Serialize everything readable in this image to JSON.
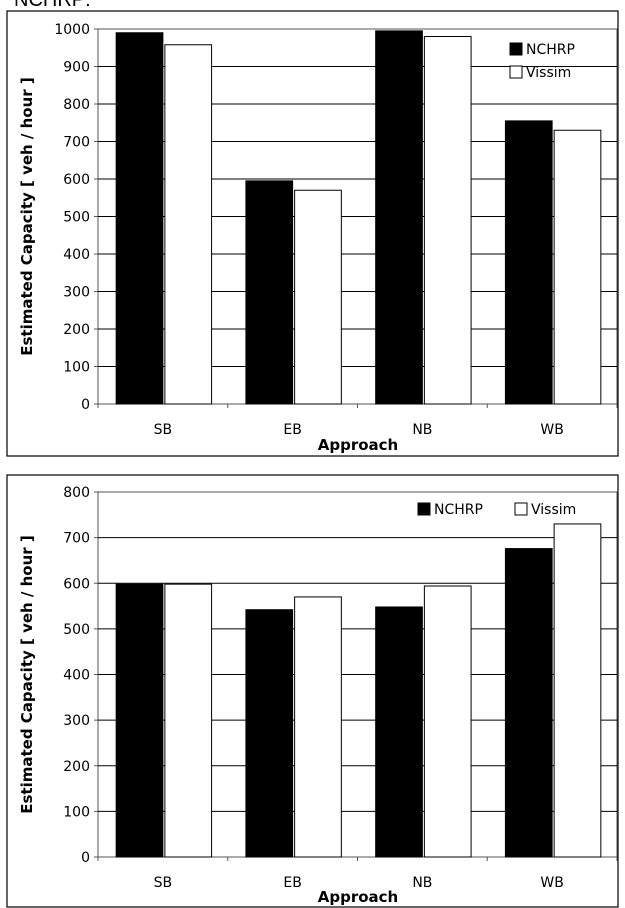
{
  "caption": "NCHRP:",
  "chart_data": [
    {
      "type": "bar",
      "categories": [
        "SB",
        "EB",
        "NB",
        "WB"
      ],
      "series": [
        {
          "name": "NCHRP",
          "values": [
            990,
            595,
            995,
            755
          ],
          "color": "#000000"
        },
        {
          "name": "Vissim",
          "values": [
            958,
            570,
            980,
            730
          ],
          "color": "#ffffff"
        }
      ],
      "xlabel": "Approach",
      "ylabel": "Estimated Capacity [ veh / hour ]",
      "ylim": [
        0,
        1000
      ],
      "yticks": [
        "0",
        "100",
        "200",
        "300",
        "400",
        "500",
        "600",
        "700",
        "800",
        "900",
        "1000"
      ],
      "grid": true,
      "legend": "top-right, stacked"
    },
    {
      "type": "bar",
      "categories": [
        "SB",
        "EB",
        "NB",
        "WB"
      ],
      "series": [
        {
          "name": "NCHRP",
          "values": [
            598,
            542,
            548,
            676
          ],
          "color": "#000000"
        },
        {
          "name": "Vissim",
          "values": [
            598,
            570,
            594,
            730
          ],
          "color": "#ffffff"
        }
      ],
      "xlabel": "Approach",
      "ylabel": "Estimated Capacity [ veh / hour ]",
      "ylim": [
        0,
        800
      ],
      "yticks": [
        "0",
        "100",
        "200",
        "300",
        "400",
        "500",
        "600",
        "700",
        "800"
      ],
      "grid": true,
      "legend": "top-right, inline"
    }
  ]
}
